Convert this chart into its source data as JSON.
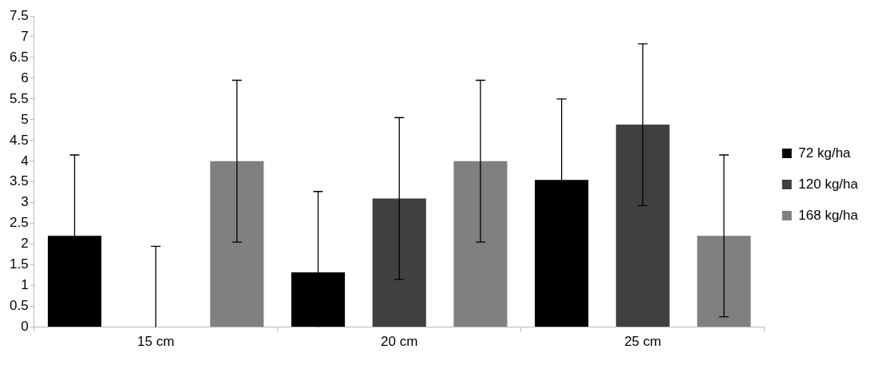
{
  "chart_data": {
    "type": "bar",
    "categories": [
      "15 cm",
      "20 cm",
      "25 cm"
    ],
    "series": [
      {
        "name": "72 kg/ha",
        "color": "#000000",
        "values": [
          2.2,
          1.32,
          3.55
        ],
        "errors": [
          1.95,
          [
            0,
            3.27
          ],
          1.95
        ]
      },
      {
        "name": "120 kg/ha",
        "color": "#404040",
        "values": [
          0,
          3.1,
          4.88
        ],
        "errors": [
          [
            0,
            1.95
          ],
          1.95,
          1.95
        ]
      },
      {
        "name": "168 kg/ha",
        "color": "#808080",
        "values": [
          4,
          4,
          2.2
        ],
        "errors": [
          1.95,
          1.95,
          1.95
        ]
      }
    ],
    "ylim": [
      0,
      7.5
    ],
    "yticks": [
      0,
      0.5,
      1,
      1.5,
      2,
      2.5,
      3,
      3.5,
      4,
      4.5,
      5,
      5.5,
      6,
      6.5,
      7,
      7.5
    ],
    "grid": false,
    "legend": "right"
  }
}
